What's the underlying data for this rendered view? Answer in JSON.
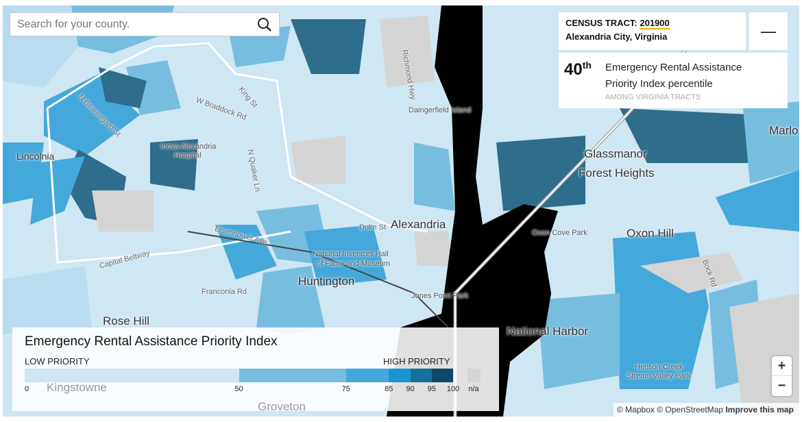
{
  "search": {
    "placeholder": "Search for your county."
  },
  "info": {
    "tract_label": "CENSUS TRACT:",
    "tract_id": "201900",
    "location": "Alexandria City, Virginia",
    "percentile": "40",
    "percentile_suffix": "th",
    "description_line1": "Emergency Rental Assistance",
    "description_line2": "Priority Index percentile",
    "scope": "AMONG VIRGINIA TRACTS",
    "collapse": "—"
  },
  "legend": {
    "title": "Emergency Rental Assistance Priority Index",
    "low": "LOW PRIORITY",
    "high": "HIGH PRIORITY",
    "bins": [
      {
        "from": 0,
        "to": 50,
        "color": "#cfe6f3"
      },
      {
        "from": 50,
        "to": 75,
        "color": "#77bde0"
      },
      {
        "from": 75,
        "to": 85,
        "color": "#45a8da"
      },
      {
        "from": 85,
        "to": 90,
        "color": "#1a95d0"
      },
      {
        "from": 90,
        "to": 95,
        "color": "#166f9c"
      },
      {
        "from": 95,
        "to": 100,
        "color": "#0e4767"
      }
    ],
    "ticks": [
      "0",
      "50",
      "75",
      "85",
      "90",
      "95",
      "100"
    ],
    "na_label": "n/a",
    "na_color": "#d4d4d4"
  },
  "map_labels": [
    {
      "text": "Alexandria",
      "cls": "big"
    },
    {
      "text": "Glassmanor",
      "cls": "big"
    },
    {
      "text": "Forest Heights",
      "cls": "big"
    },
    {
      "text": "Oxon Hill",
      "cls": "big"
    },
    {
      "text": "Huntington",
      "cls": "big"
    },
    {
      "text": "Rose Hill",
      "cls": "big"
    },
    {
      "text": "National Harbor",
      "cls": "big"
    },
    {
      "text": "Lincolnia",
      "cls": ""
    },
    {
      "text": "Marlo",
      "cls": "big"
    },
    {
      "text": "Kingstowne",
      "cls": "big"
    },
    {
      "text": "Groveton",
      "cls": "big"
    },
    {
      "text": "Daingerfield Island",
      "cls": "sm"
    },
    {
      "text": "Inova Alexandria",
      "cls": "sm"
    },
    {
      "text": "Hospital",
      "cls": "sm"
    },
    {
      "text": "Oxon Cove Park",
      "cls": "sm"
    },
    {
      "text": "National Inventors Hall",
      "cls": "sm"
    },
    {
      "text": "of Fame and Museum",
      "cls": "sm"
    },
    {
      "text": "Jones Point Park",
      "cls": "sm"
    },
    {
      "text": "Henson Creek",
      "cls": "sm"
    },
    {
      "text": "Stream Valley Park",
      "cls": "sm"
    },
    {
      "text": "Capital Beltway",
      "cls": "road"
    },
    {
      "text": "Franconia Rd",
      "cls": "road"
    },
    {
      "text": "Duke St",
      "cls": "road"
    },
    {
      "text": "King St",
      "cls": "road"
    },
    {
      "text": "N Quaker Ln",
      "cls": "road"
    },
    {
      "text": "W Braddock Rd",
      "cls": "road"
    },
    {
      "text": "Richmond Hwy",
      "cls": "road"
    },
    {
      "text": "Eisenhower Ave",
      "cls": "road"
    },
    {
      "text": "N Beauregard St",
      "cls": "road"
    },
    {
      "text": "Bock Rd",
      "cls": "road"
    }
  ],
  "zoom": {
    "in": "+",
    "out": "−"
  },
  "attribution": {
    "mapbox": "© Mapbox",
    "osm": "© OpenStreetMap",
    "improve": "Improve this map"
  }
}
